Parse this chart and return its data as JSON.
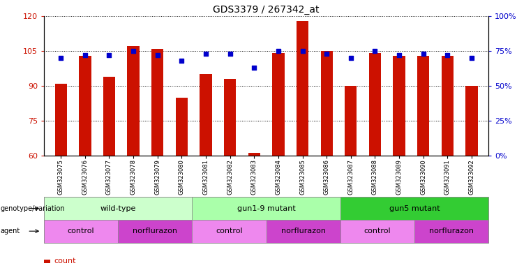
{
  "title": "GDS3379 / 267342_at",
  "samples": [
    "GSM323075",
    "GSM323076",
    "GSM323077",
    "GSM323078",
    "GSM323079",
    "GSM323080",
    "GSM323081",
    "GSM323082",
    "GSM323083",
    "GSM323084",
    "GSM323085",
    "GSM323086",
    "GSM323087",
    "GSM323088",
    "GSM323089",
    "GSM323090",
    "GSM323091",
    "GSM323092"
  ],
  "counts": [
    91,
    103,
    94,
    107,
    106,
    85,
    95,
    93,
    61,
    104,
    118,
    105,
    90,
    104,
    103,
    103,
    103,
    90
  ],
  "percentiles": [
    70,
    72,
    72,
    75,
    72,
    68,
    73,
    73,
    63,
    75,
    75,
    73,
    70,
    75,
    72,
    73,
    72,
    70
  ],
  "ylim_left": [
    60,
    120
  ],
  "ylim_right": [
    0,
    100
  ],
  "yticks_left": [
    60,
    75,
    90,
    105,
    120
  ],
  "yticks_right": [
    0,
    25,
    50,
    75,
    100
  ],
  "bar_color": "#cc1100",
  "dot_color": "#0000cc",
  "genotype_groups": [
    {
      "label": "wild-type",
      "start": 0,
      "end": 6,
      "color": "#ccffcc"
    },
    {
      "label": "gun1-9 mutant",
      "start": 6,
      "end": 12,
      "color": "#aaffaa"
    },
    {
      "label": "gun5 mutant",
      "start": 12,
      "end": 18,
      "color": "#33cc33"
    }
  ],
  "agent_groups": [
    {
      "label": "control",
      "start": 0,
      "end": 3,
      "color": "#ee88ee"
    },
    {
      "label": "norflurazon",
      "start": 3,
      "end": 6,
      "color": "#cc44cc"
    },
    {
      "label": "control",
      "start": 6,
      "end": 9,
      "color": "#ee88ee"
    },
    {
      "label": "norflurazon",
      "start": 9,
      "end": 12,
      "color": "#cc44cc"
    },
    {
      "label": "control",
      "start": 12,
      "end": 15,
      "color": "#ee88ee"
    },
    {
      "label": "norflurazon",
      "start": 15,
      "end": 18,
      "color": "#cc44cc"
    }
  ],
  "left_label_color": "#cc1100",
  "right_label_color": "#0000cc",
  "bg_color": "#ffffff"
}
